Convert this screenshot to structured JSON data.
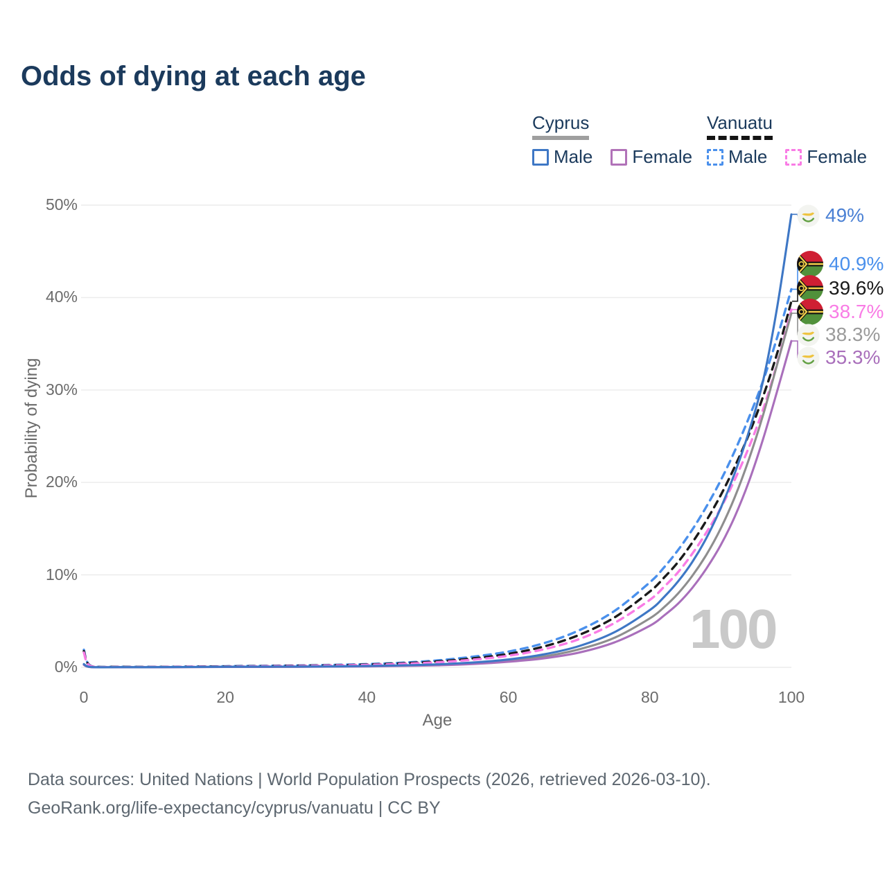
{
  "title": "Odds of dying at each age",
  "legend": {
    "groups": [
      {
        "country": "Cyprus",
        "style": "solid",
        "items": [
          {
            "label": "Male",
            "color": "#3e77c5",
            "dash": false
          },
          {
            "label": "Female",
            "color": "#b172b8",
            "dash": false
          }
        ]
      },
      {
        "country": "Vanuatu",
        "style": "dashed",
        "items": [
          {
            "label": "Male",
            "color": "#4a90ec",
            "dash": true
          },
          {
            "label": "Female",
            "color": "#f97ce5",
            "dash": true
          }
        ]
      }
    ]
  },
  "chart_data": {
    "type": "line",
    "title": "Odds of dying at each age",
    "xlabel": "Age",
    "ylabel": "Probability of dying",
    "xlim": [
      0,
      100
    ],
    "ylim": [
      0,
      50
    ],
    "grid": "horizontal",
    "legend_position": "top-right",
    "x_ticks": [
      {
        "v": 0,
        "label": "0"
      },
      {
        "v": 20,
        "label": "20"
      },
      {
        "v": 40,
        "label": "40"
      },
      {
        "v": 60,
        "label": "60"
      },
      {
        "v": 80,
        "label": "80"
      },
      {
        "v": 100,
        "label": "100"
      }
    ],
    "y_ticks": [
      {
        "v": 0,
        "label": "0%"
      },
      {
        "v": 10,
        "label": "10%"
      },
      {
        "v": 20,
        "label": "20%"
      },
      {
        "v": 30,
        "label": "30%"
      },
      {
        "v": 40,
        "label": "40%"
      },
      {
        "v": 50,
        "label": "50%"
      }
    ],
    "x": [
      0,
      1,
      5,
      10,
      15,
      20,
      25,
      30,
      35,
      40,
      45,
      50,
      55,
      60,
      65,
      70,
      75,
      80,
      82,
      84,
      86,
      88,
      90,
      92,
      94,
      96,
      98,
      100
    ],
    "series": [
      {
        "id": "vanuatu-male",
        "name": "Vanuatu Male",
        "country": "Vanuatu",
        "sex": "Male",
        "color": "#4a90ec",
        "dash": true,
        "end_label": "40.9%",
        "values": [
          1.9,
          0.15,
          0.06,
          0.05,
          0.08,
          0.12,
          0.16,
          0.2,
          0.26,
          0.35,
          0.5,
          0.75,
          1.15,
          1.7,
          2.6,
          4.0,
          6.1,
          9.2,
          10.8,
          12.7,
          14.9,
          17.4,
          20.2,
          23.4,
          27.0,
          31.0,
          35.7,
          40.9
        ]
      },
      {
        "id": "vanuatu-both",
        "name": "Vanuatu Both sexes",
        "country": "Vanuatu",
        "sex": "Both",
        "color": "#1a1a1a",
        "dash": true,
        "end_label": "39.6%",
        "values": [
          1.75,
          0.13,
          0.05,
          0.045,
          0.07,
          0.1,
          0.13,
          0.17,
          0.22,
          0.3,
          0.43,
          0.64,
          0.97,
          1.45,
          2.25,
          3.5,
          5.4,
          8.2,
          9.7,
          11.4,
          13.5,
          15.9,
          18.6,
          21.7,
          25.2,
          29.3,
          34.0,
          39.6
        ]
      },
      {
        "id": "vanuatu-female",
        "name": "Vanuatu Female",
        "country": "Vanuatu",
        "sex": "Female",
        "color": "#f97ce5",
        "dash": true,
        "end_label": "38.7%",
        "values": [
          1.6,
          0.11,
          0.04,
          0.04,
          0.06,
          0.08,
          0.11,
          0.14,
          0.19,
          0.26,
          0.37,
          0.55,
          0.83,
          1.25,
          1.95,
          3.05,
          4.8,
          7.3,
          8.7,
          10.3,
          12.3,
          14.6,
          17.2,
          20.3,
          23.8,
          27.9,
          32.9,
          38.7
        ]
      },
      {
        "id": "cyprus-both",
        "name": "Cyprus Both sexes",
        "country": "Cyprus",
        "sex": "Both",
        "color": "#8e8e8e",
        "dash": false,
        "end_label": "38.3%",
        "values": [
          0.3,
          0.03,
          0.015,
          0.015,
          0.03,
          0.05,
          0.06,
          0.07,
          0.09,
          0.12,
          0.18,
          0.27,
          0.44,
          0.72,
          1.17,
          1.95,
          3.2,
          5.3,
          6.5,
          8.0,
          9.9,
          12.2,
          15.0,
          18.4,
          22.5,
          27.3,
          32.8,
          38.3
        ]
      },
      {
        "id": "cyprus-female",
        "name": "Cyprus Female",
        "country": "Cyprus",
        "sex": "Female",
        "color": "#a96fbb",
        "dash": false,
        "end_label": "35.3%",
        "values": [
          0.27,
          0.02,
          0.01,
          0.01,
          0.02,
          0.035,
          0.045,
          0.055,
          0.075,
          0.1,
          0.15,
          0.22,
          0.36,
          0.6,
          0.97,
          1.6,
          2.7,
          4.5,
          5.6,
          6.9,
          8.6,
          10.7,
          13.2,
          16.3,
          20.1,
          24.7,
          29.9,
          35.3
        ]
      },
      {
        "id": "cyprus-male",
        "name": "Cyprus Male",
        "country": "Cyprus",
        "sex": "Male",
        "color": "#3e77c5",
        "dash": false,
        "end_label": "49%",
        "values": [
          0.35,
          0.03,
          0.02,
          0.02,
          0.04,
          0.06,
          0.07,
          0.08,
          0.1,
          0.14,
          0.21,
          0.32,
          0.52,
          0.85,
          1.4,
          2.3,
          3.8,
          6.2,
          7.6,
          9.3,
          11.4,
          14.0,
          17.2,
          21.0,
          25.5,
          31.0,
          39.0,
          49.0
        ]
      }
    ]
  },
  "end_labels": [
    {
      "text": "49%",
      "flag": "cyprus",
      "color": "#4a80d4"
    },
    {
      "text": "40.9%",
      "flag": "vanuatu",
      "color": "#4a90ec"
    },
    {
      "text": "39.6%",
      "flag": "vanuatu",
      "color": "#1a1a1a"
    },
    {
      "text": "38.7%",
      "flag": "vanuatu",
      "color": "#f97ce5"
    },
    {
      "text": "38.3%",
      "flag": "cyprus",
      "color": "#9a9a9a"
    },
    {
      "text": "35.3%",
      "flag": "cyprus",
      "color": "#a96fbb"
    }
  ],
  "watermark": "100",
  "footer": {
    "line1": "Data sources: United Nations | World Population Prospects (2026, retrieved 2026-03-10).",
    "line2": "GeoRank.org/life-expectancy/cyprus/vanuatu | CC BY"
  }
}
